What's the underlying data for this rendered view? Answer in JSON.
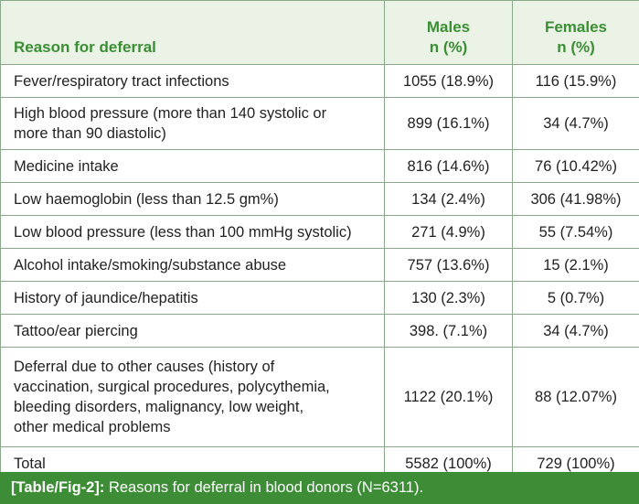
{
  "table": {
    "headers": {
      "reason": "Reason for deferral",
      "males_line1": "Males",
      "males_line2": "n (%)",
      "females_line1": "Females",
      "females_line2": "n (%)"
    },
    "rows": [
      {
        "reason_lines": [
          "Fever/respiratory tract infections"
        ],
        "males": "1055 (18.9%)",
        "females": "116 (15.9%)"
      },
      {
        "reason_lines": [
          "High blood pressure (more than 140 systolic or",
          "more than 90 diastolic)"
        ],
        "males": "899 (16.1%)",
        "females": "34 (4.7%)"
      },
      {
        "reason_lines": [
          "Medicine intake"
        ],
        "males": "816 (14.6%)",
        "females": "76 (10.42%)"
      },
      {
        "reason_lines": [
          "Low haemoglobin (less than 12.5 gm%)"
        ],
        "males": "134 (2.4%)",
        "females": "306 (41.98%)"
      },
      {
        "reason_lines": [
          "Low blood pressure (less than 100 mmHg systolic)"
        ],
        "males": "271 (4.9%)",
        "females": "55 (7.54%)"
      },
      {
        "reason_lines": [
          "Alcohol intake/smoking/substance abuse"
        ],
        "males": "757 (13.6%)",
        "females": "15 (2.1%)"
      },
      {
        "reason_lines": [
          "History of jaundice/hepatitis"
        ],
        "males": "130 (2.3%)",
        "females": "5 (0.7%)"
      },
      {
        "reason_lines": [
          "Tattoo/ear piercing"
        ],
        "males": "398. (7.1%)",
        "females": "34 (4.7%)"
      },
      {
        "reason_lines": [
          "Deferral due to other causes (history of",
          "vaccination, surgical procedures, polycythemia,",
          "bleeding disorders, malignancy, low weight,",
          "other medical problems"
        ],
        "males": "1122 (20.1%)",
        "females": "88 (12.07%)"
      },
      {
        "reason_lines": [
          "Total"
        ],
        "males": "5582 (100%)",
        "females": "729 (100%)"
      }
    ]
  },
  "caption": {
    "label": "[Table/Fig-2]:",
    "text": " Reasons for deferral in blood donors (N=6311)."
  },
  "colors": {
    "header_bg": "#eaf3e6",
    "header_text": "#3a8f33",
    "border": "#8aa98a",
    "caption_bg": "#3c8d36",
    "caption_text": "#ffffff"
  }
}
